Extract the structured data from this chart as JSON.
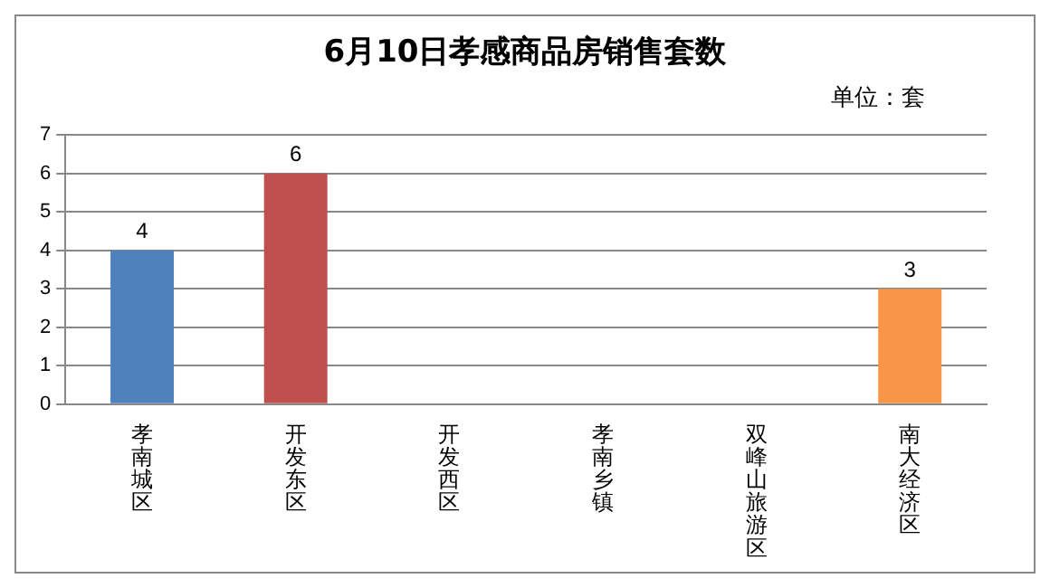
{
  "chart_data": {
    "type": "bar",
    "title": "6月10日孝感商品房销售套数",
    "annotations": [
      "单位：套"
    ],
    "categories": [
      "孝南城区",
      "开发东区",
      "开发西区",
      "孝南乡镇",
      "双峰山旅游区",
      "南大经济区"
    ],
    "values": [
      4,
      6,
      0,
      0,
      0,
      3
    ],
    "colors": [
      "#4f81bd",
      "#c0504d",
      "#9bbb59",
      "#8064a2",
      "#4bacc6",
      "#f79646"
    ],
    "value_labels": [
      "4",
      "6",
      null,
      null,
      null,
      "3"
    ],
    "ylim": [
      0,
      7
    ],
    "yticks": [
      0,
      1,
      2,
      3,
      4,
      5,
      6,
      7
    ],
    "grid": "y",
    "legend": false
  }
}
